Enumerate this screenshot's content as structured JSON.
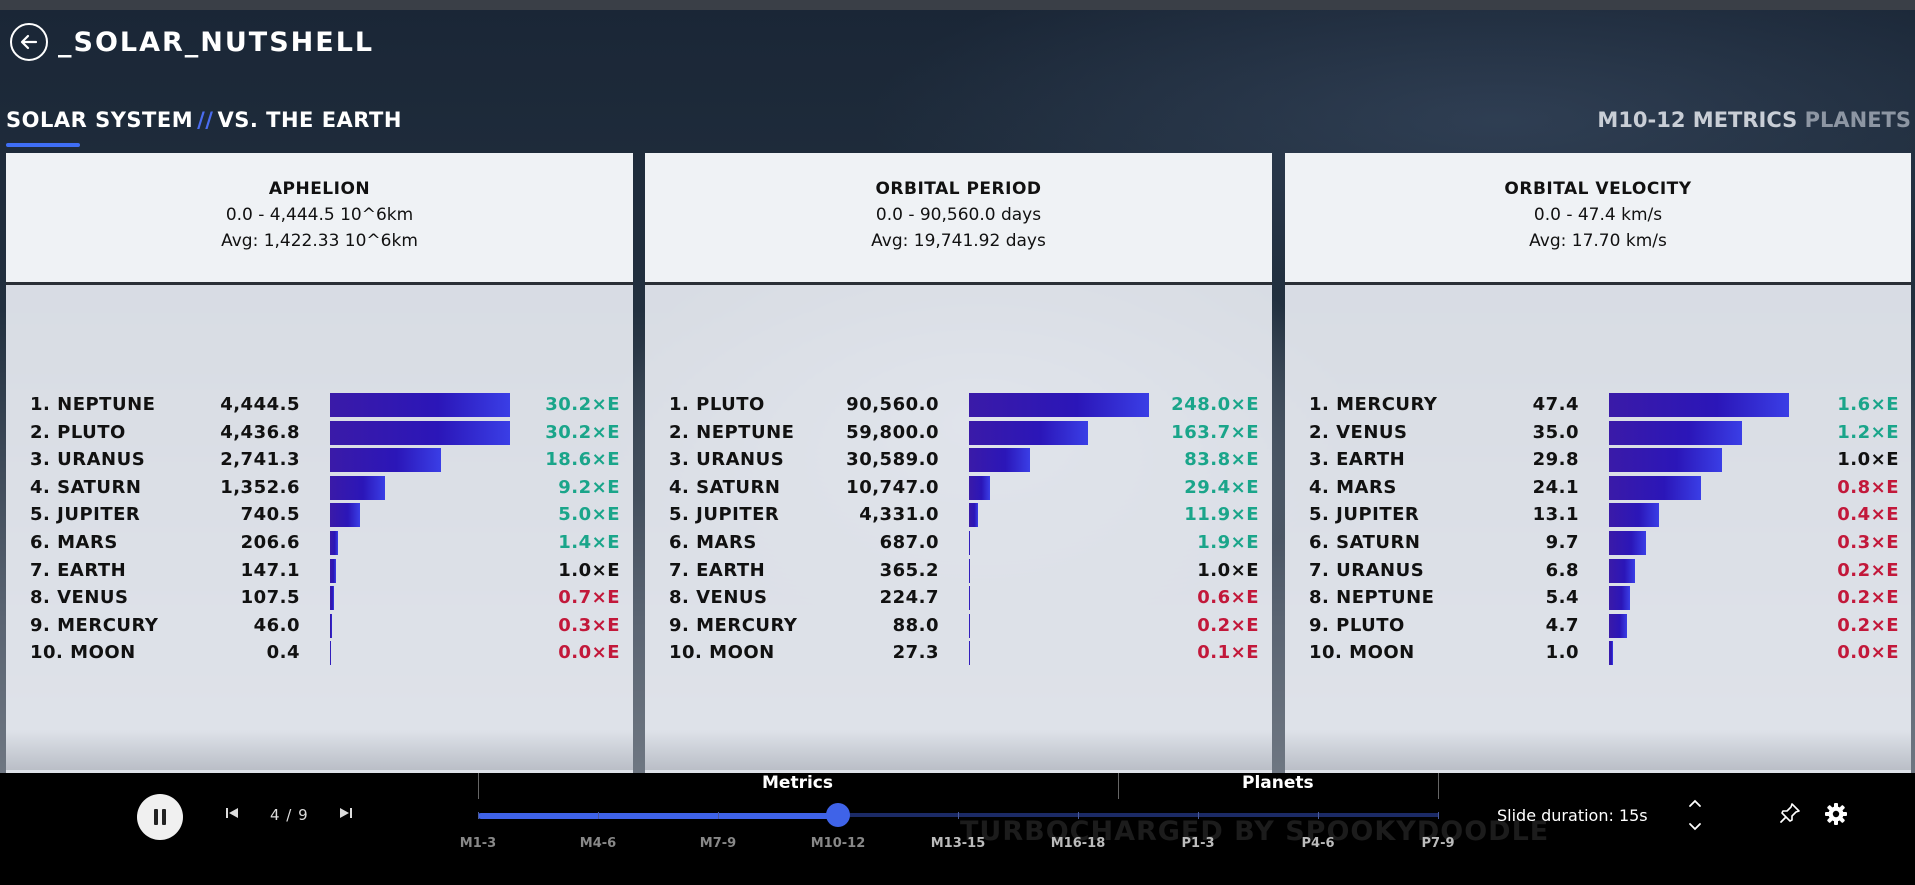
{
  "header": {
    "title": "_SOLAR_NUTSHELL"
  },
  "subheader": {
    "left_main": "SOLAR SYSTEM",
    "left_sep": "//",
    "left_sub": "VS. THE EARTH",
    "right_main": "M10-12 METRICS",
    "right_sub": "PLANETS"
  },
  "panels": [
    {
      "title": "APHELION",
      "range": "0.0 - 4,444.5 10^6km",
      "avg": "Avg: 1,422.33 10^6km",
      "chart_data": {
        "type": "bar",
        "title": "APHELION",
        "unit": "10^6km",
        "xlim": [
          0,
          4444.5
        ],
        "rows": [
          {
            "name": "1.  NEPTUNE",
            "value": 4444.5,
            "value_label": "4,444.5",
            "ratio": "30.2×E",
            "trend": "up"
          },
          {
            "name": "2.  PLUTO",
            "value": 4436.8,
            "value_label": "4,436.8",
            "ratio": "30.2×E",
            "trend": "up"
          },
          {
            "name": "3.  URANUS",
            "value": 2741.3,
            "value_label": "2,741.3",
            "ratio": "18.6×E",
            "trend": "up"
          },
          {
            "name": "4.  SATURN",
            "value": 1352.6,
            "value_label": "1,352.6",
            "ratio": "9.2×E",
            "trend": "up"
          },
          {
            "name": "5.  JUPITER",
            "value": 740.5,
            "value_label": "740.5",
            "ratio": "5.0×E",
            "trend": "up"
          },
          {
            "name": "6.  MARS",
            "value": 206.6,
            "value_label": "206.6",
            "ratio": "1.4×E",
            "trend": "up"
          },
          {
            "name": "7.  EARTH",
            "value": 147.1,
            "value_label": "147.1",
            "ratio": "1.0×E",
            "trend": "eq"
          },
          {
            "name": "8.  VENUS",
            "value": 107.5,
            "value_label": "107.5",
            "ratio": "0.7×E",
            "trend": "down"
          },
          {
            "name": "9.  MERCURY",
            "value": 46.0,
            "value_label": "46.0",
            "ratio": "0.3×E",
            "trend": "down"
          },
          {
            "name": "10.  MOON",
            "value": 0.4,
            "value_label": "0.4",
            "ratio": "0.0×E",
            "trend": "down"
          }
        ]
      }
    },
    {
      "title": "ORBITAL PERIOD",
      "range": "0.0 - 90,560.0 days",
      "avg": "Avg: 19,741.92 days",
      "chart_data": {
        "type": "bar",
        "title": "ORBITAL PERIOD",
        "unit": "days",
        "xlim": [
          0,
          90560.0
        ],
        "rows": [
          {
            "name": "1.  PLUTO",
            "value": 90560.0,
            "value_label": "90,560.0",
            "ratio": "248.0×E",
            "trend": "up"
          },
          {
            "name": "2.  NEPTUNE",
            "value": 59800.0,
            "value_label": "59,800.0",
            "ratio": "163.7×E",
            "trend": "up"
          },
          {
            "name": "3.  URANUS",
            "value": 30589.0,
            "value_label": "30,589.0",
            "ratio": "83.8×E",
            "trend": "up"
          },
          {
            "name": "4.  SATURN",
            "value": 10747.0,
            "value_label": "10,747.0",
            "ratio": "29.4×E",
            "trend": "up"
          },
          {
            "name": "5.  JUPITER",
            "value": 4331.0,
            "value_label": "4,331.0",
            "ratio": "11.9×E",
            "trend": "up"
          },
          {
            "name": "6.  MARS",
            "value": 687.0,
            "value_label": "687.0",
            "ratio": "1.9×E",
            "trend": "up"
          },
          {
            "name": "7.  EARTH",
            "value": 365.2,
            "value_label": "365.2",
            "ratio": "1.0×E",
            "trend": "eq"
          },
          {
            "name": "8.  VENUS",
            "value": 224.7,
            "value_label": "224.7",
            "ratio": "0.6×E",
            "trend": "down"
          },
          {
            "name": "9.  MERCURY",
            "value": 88.0,
            "value_label": "88.0",
            "ratio": "0.2×E",
            "trend": "down"
          },
          {
            "name": "10.  MOON",
            "value": 27.3,
            "value_label": "27.3",
            "ratio": "0.1×E",
            "trend": "down"
          }
        ]
      }
    },
    {
      "title": "ORBITAL VELOCITY",
      "range": "0.0 - 47.4 km/s",
      "avg": "Avg: 17.70 km/s",
      "chart_data": {
        "type": "bar",
        "title": "ORBITAL VELOCITY",
        "unit": "km/s",
        "xlim": [
          0,
          47.4
        ],
        "rows": [
          {
            "name": "1.  MERCURY",
            "value": 47.4,
            "value_label": "47.4",
            "ratio": "1.6×E",
            "trend": "up"
          },
          {
            "name": "2.  VENUS",
            "value": 35.0,
            "value_label": "35.0",
            "ratio": "1.2×E",
            "trend": "up"
          },
          {
            "name": "3.  EARTH",
            "value": 29.8,
            "value_label": "29.8",
            "ratio": "1.0×E",
            "trend": "eq"
          },
          {
            "name": "4.  MARS",
            "value": 24.1,
            "value_label": "24.1",
            "ratio": "0.8×E",
            "trend": "down"
          },
          {
            "name": "5.  JUPITER",
            "value": 13.1,
            "value_label": "13.1",
            "ratio": "0.4×E",
            "trend": "down"
          },
          {
            "name": "6.  SATURN",
            "value": 9.7,
            "value_label": "9.7",
            "ratio": "0.3×E",
            "trend": "down"
          },
          {
            "name": "7.  URANUS",
            "value": 6.8,
            "value_label": "6.8",
            "ratio": "0.2×E",
            "trend": "down"
          },
          {
            "name": "8.  NEPTUNE",
            "value": 5.4,
            "value_label": "5.4",
            "ratio": "0.2×E",
            "trend": "down"
          },
          {
            "name": "9.  PLUTO",
            "value": 4.7,
            "value_label": "4.7",
            "ratio": "0.2×E",
            "trend": "down"
          },
          {
            "name": "10.  MOON",
            "value": 1.0,
            "value_label": "1.0",
            "ratio": "0.0×E",
            "trend": "down"
          }
        ]
      }
    }
  ],
  "colors": {
    "bar": "#2b16b8",
    "up": "#1aa58a",
    "down": "#c2183a",
    "accent": "#3f63e8"
  },
  "footer": {
    "counter": "4 / 9",
    "groups": [
      "Metrics",
      "Planets"
    ],
    "ticks": [
      "M1-3",
      "M4-6",
      "M7-9",
      "M10-12",
      "M13-15",
      "M16-18",
      "P1-3",
      "P4-6",
      "P7-9"
    ],
    "current_index": 3,
    "progress_fraction": 0.375,
    "slide_duration": "Slide duration: 15s",
    "watermark": "TURBOCHARGED BY SPOOKYDOODLE"
  },
  "icons": {
    "back": "arrow-left-circle-icon",
    "pause": "pause-icon",
    "prev": "skip-previous-icon",
    "next": "skip-next-icon",
    "up": "chevron-up-icon",
    "down": "chevron-down-icon",
    "pin": "pin-icon",
    "settings": "gear-icon"
  }
}
